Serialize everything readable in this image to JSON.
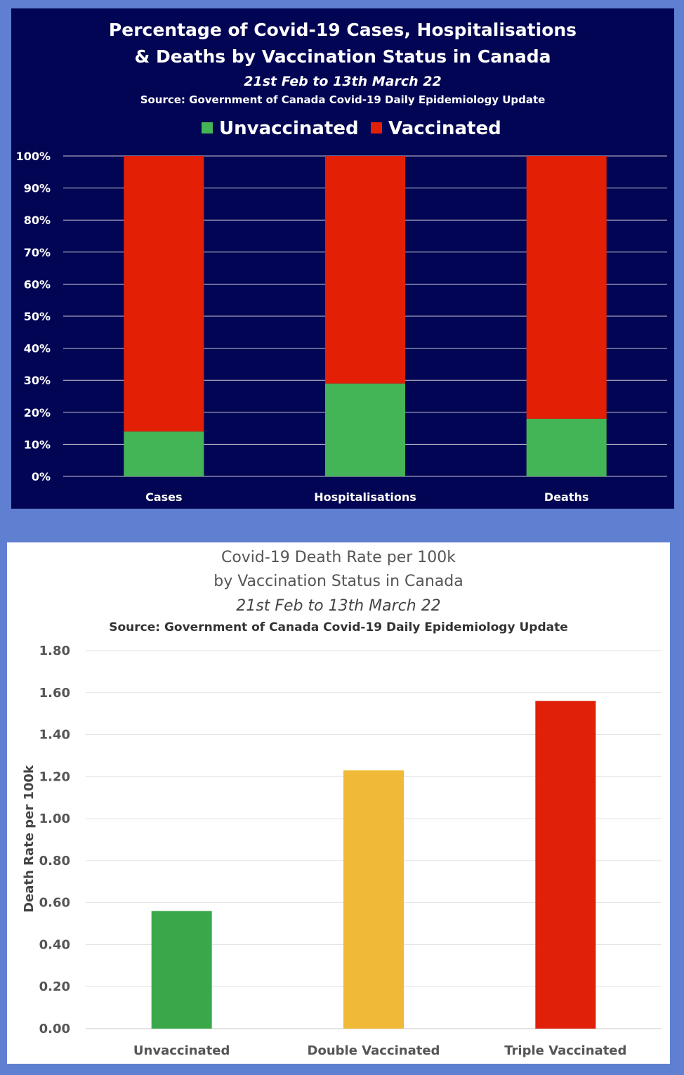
{
  "chart_data": [
    {
      "type": "bar",
      "stacked": true,
      "title_line1": "Percentage of Covid-19 Cases, Hospitalisations",
      "title_line2": "& Deaths by Vaccination Status in Canada",
      "subtitle": "21st Feb to 13th March 22",
      "source": "Source: Government of Canada  Covid-19 Daily Epidemiology Update",
      "categories": [
        "Cases",
        "Hospitalisations",
        "Deaths"
      ],
      "series": [
        {
          "name": "Unvaccinated",
          "color": "#44b556",
          "values": [
            14,
            29,
            18
          ]
        },
        {
          "name": "Vaccinated",
          "color": "#e32006",
          "values": [
            86,
            71,
            82
          ]
        }
      ],
      "ylim": [
        0,
        100
      ],
      "yticks": [
        "0%",
        "10%",
        "20%",
        "30%",
        "40%",
        "50%",
        "60%",
        "70%",
        "80%",
        "90%",
        "100%"
      ],
      "legend_position": "top",
      "grid": true,
      "background": "#020553"
    },
    {
      "type": "bar",
      "title_line1": "Covid-19 Death Rate per 100k",
      "title_line2": "by Vaccination Status in Canada",
      "subtitle": "21st Feb to 13th March 22",
      "source": "Source: Government of Canada  Covid-19 Daily Epidemiology Update",
      "ylabel": "Death Rate per 100k",
      "categories": [
        "Unvaccinated",
        "Double Vaccinated",
        "Triple Vaccinated"
      ],
      "values": [
        0.56,
        1.23,
        1.56
      ],
      "colors": [
        "#3aa84a",
        "#f0ba38",
        "#e02008"
      ],
      "ylim": [
        0,
        1.8
      ],
      "yticks": [
        "0.00",
        "0.20",
        "0.40",
        "0.60",
        "0.80",
        "1.00",
        "1.20",
        "1.40",
        "1.60",
        "1.80"
      ],
      "grid": true,
      "background": "#ffffff"
    }
  ]
}
